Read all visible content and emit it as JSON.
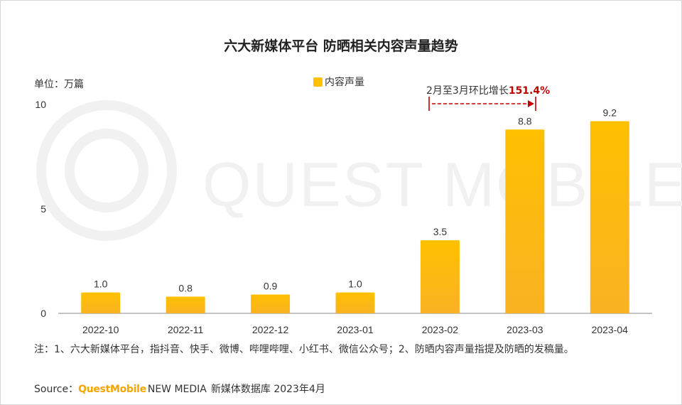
{
  "chart_data": {
    "type": "bar",
    "title": "六大新媒体平台 防晒相关内容声量趋势",
    "unit_label": "单位：万篇",
    "categories": [
      "2022-10",
      "2022-11",
      "2022-12",
      "2023-01",
      "2023-02",
      "2023-03",
      "2023-04"
    ],
    "series": [
      {
        "name": "内容声量",
        "values": [
          1.0,
          0.8,
          0.9,
          1.0,
          3.5,
          8.8,
          9.2
        ]
      }
    ],
    "data_labels": [
      "1.0",
      "0.8",
      "0.9",
      "1.0",
      "3.5",
      "8.8",
      "9.2"
    ],
    "yticks": [
      "0",
      "5",
      "10"
    ],
    "ylim": [
      0,
      10
    ],
    "grid": false,
    "legend": "top-center",
    "bar_color": "#ffc000",
    "annotation": {
      "text": "2月至3月环比增长",
      "value": "151.4%",
      "color": "#c00000"
    }
  },
  "note": "注：1、六大新媒体平台，指抖音、快手、微博、哔哩哔哩、小红书、微信公众号；2、防晒内容声量指提及防晒的发稿量。",
  "source": {
    "label": "Source：",
    "brand": "QuestMobile",
    "brand_tail": "NEW MEDIA",
    "rest": "新媒体数据库 2023年4月",
    "brand_color": "#f6a400"
  },
  "watermark": "QUEST MOBILE"
}
